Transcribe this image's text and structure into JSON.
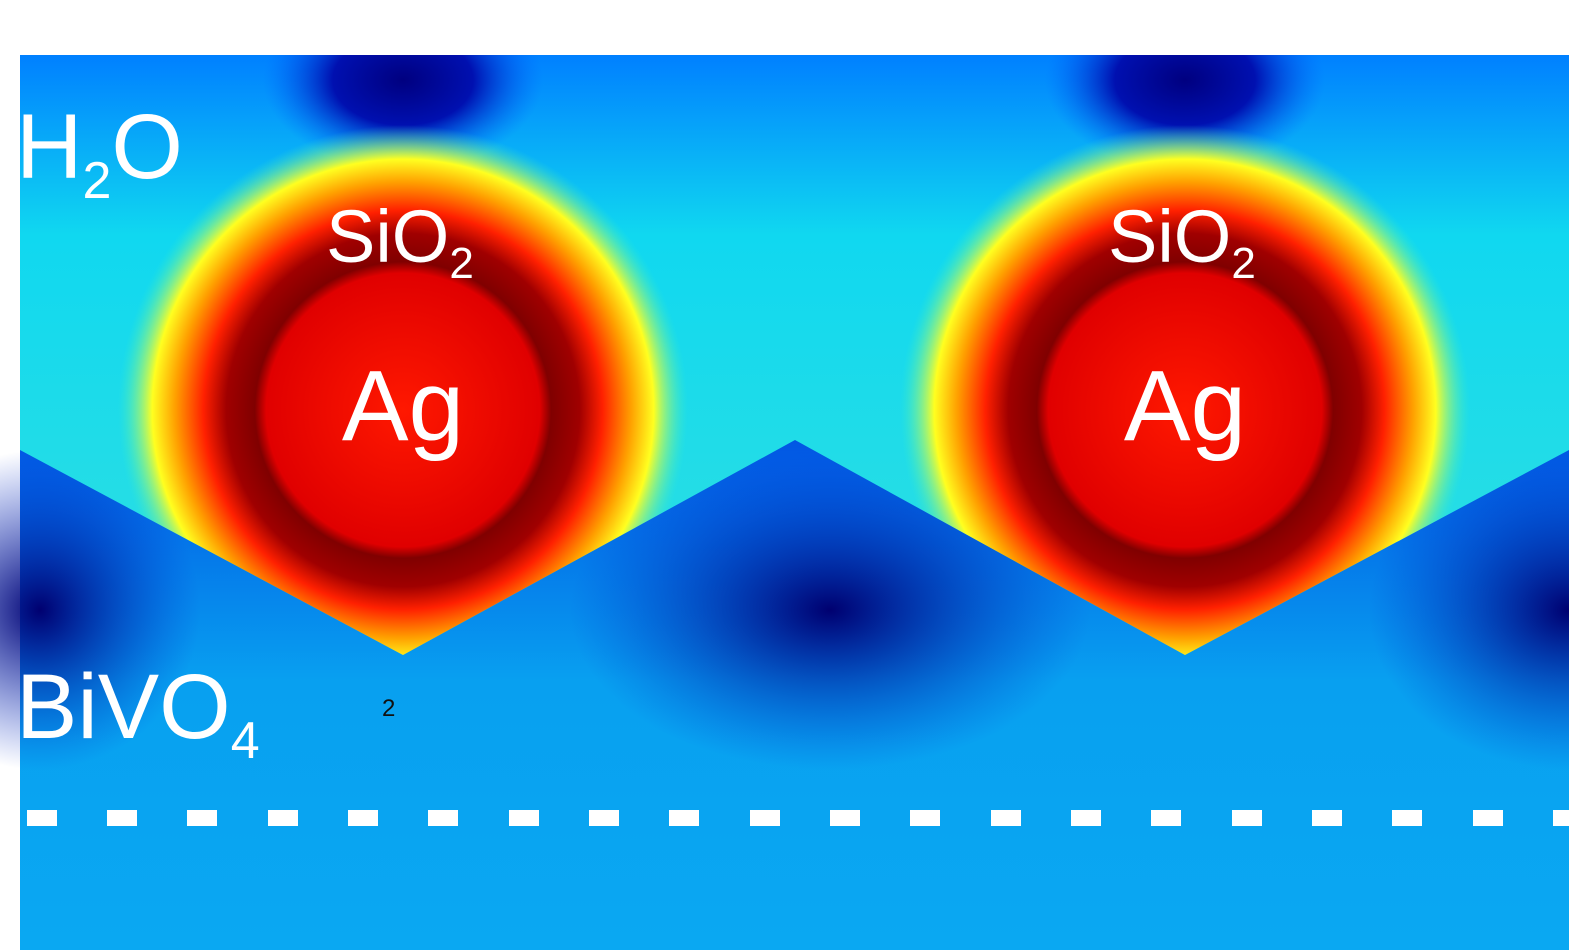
{
  "water": {
    "main": "H",
    "sub": "2",
    "end": "O"
  },
  "particles": [
    {
      "shell": "SiO",
      "shell_sub": "2",
      "core": "Ag"
    },
    {
      "shell": "SiO",
      "shell_sub": "2",
      "core": "Ag"
    }
  ],
  "substrate": {
    "main": "BiVO",
    "sub": "4"
  },
  "stray_label": "2"
}
